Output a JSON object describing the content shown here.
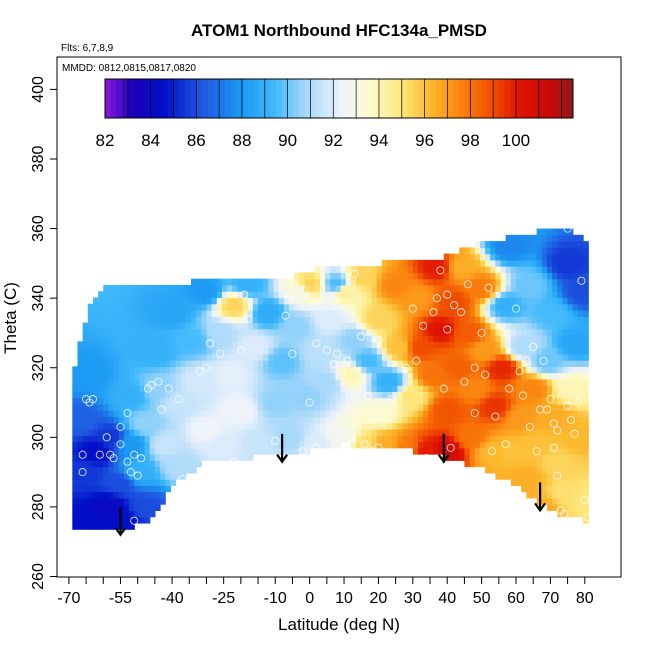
{
  "chart_data": {
    "type": "heatmap",
    "title": "ATOM1 Northbound HFC134a_PMSD",
    "flights_note": "Flts: 6,7,8,9",
    "mmdd_note": "MMDD: 0812,0815,0817,0820",
    "xlabel": "Latitude (deg N)",
    "ylabel": "Theta (C)",
    "xlim": [
      -72,
      85
    ],
    "ylim": [
      260,
      405
    ],
    "x_ticks": [
      -70,
      -55,
      -40,
      -25,
      -10,
      0,
      10,
      20,
      30,
      40,
      50,
      60,
      70,
      80
    ],
    "x_tick_labels": [
      "-70",
      "-55",
      "-40",
      "-25",
      "-10",
      "0",
      "10",
      "20",
      "30",
      "40",
      "50",
      "60",
      "70",
      "80"
    ],
    "x_minor_ticks": [
      -65,
      -60,
      -50,
      -45,
      -35,
      -30,
      -20,
      -15,
      -5,
      5,
      15,
      25,
      35,
      45,
      55,
      65,
      75
    ],
    "y_ticks": [
      260,
      280,
      300,
      320,
      340,
      360,
      380,
      400
    ],
    "y_tick_labels": [
      "260",
      "280",
      "300",
      "320",
      "340",
      "360",
      "380",
      "400"
    ],
    "colorbar": {
      "range": [
        82,
        102.5
      ],
      "ticks": [
        82,
        84,
        86,
        88,
        90,
        92,
        94,
        96,
        98,
        100
      ],
      "tick_labels": [
        "82",
        "84",
        "86",
        "88",
        "90",
        "92",
        "94",
        "96",
        "98",
        "100"
      ],
      "stops": [
        [
          82,
          "#8c1bd8"
        ],
        [
          83.2,
          "#1a00b8"
        ],
        [
          84.6,
          "#0010c8"
        ],
        [
          86.2,
          "#1f55e0"
        ],
        [
          88,
          "#1d9af3"
        ],
        [
          89.4,
          "#3fb8fb"
        ],
        [
          90.8,
          "#a8d8fa"
        ],
        [
          92.4,
          "#eef3fb"
        ],
        [
          93.6,
          "#fdfbd0"
        ],
        [
          95,
          "#fde77c"
        ],
        [
          96.2,
          "#fcb92e"
        ],
        [
          97.4,
          "#fb8a12"
        ],
        [
          98.8,
          "#f25500"
        ],
        [
          100.2,
          "#e01200"
        ],
        [
          101.6,
          "#c40a0a"
        ],
        [
          102.5,
          "#8c1a1a"
        ]
      ]
    },
    "field_points": [
      [
        -66,
        276,
        84.5
      ],
      [
        -66,
        290,
        85.5
      ],
      [
        -66,
        305,
        86.5
      ],
      [
        -64,
        318,
        88
      ],
      [
        -62,
        296,
        84.5
      ],
      [
        -58,
        280,
        84
      ],
      [
        -58,
        300,
        85.5
      ],
      [
        -55,
        287,
        86
      ],
      [
        -54,
        276,
        84.6
      ],
      [
        -52,
        298,
        88
      ],
      [
        -52,
        312,
        89
      ],
      [
        -50,
        290,
        89
      ],
      [
        -48,
        280,
        86
      ],
      [
        -48,
        304,
        90.5
      ],
      [
        -45,
        325,
        89
      ],
      [
        -44,
        314,
        90.5
      ],
      [
        -42,
        298,
        91.5
      ],
      [
        -40,
        336,
        88.5
      ],
      [
        -38,
        310,
        91.5
      ],
      [
        -38,
        292,
        91
      ],
      [
        -34,
        328,
        89.5
      ],
      [
        -32,
        316,
        91.8
      ],
      [
        -30,
        302,
        92.5
      ],
      [
        -30,
        342,
        88
      ],
      [
        -26,
        330,
        91
      ],
      [
        -26,
        298,
        92
      ],
      [
        -23,
        318,
        92.2
      ],
      [
        -22,
        338,
        95.5
      ],
      [
        -20,
        308,
        92.5
      ],
      [
        -18,
        344,
        89
      ],
      [
        -16,
        326,
        92
      ],
      [
        -14,
        298,
        91.5
      ],
      [
        -12,
        336,
        88.8
      ],
      [
        -10,
        310,
        90.5
      ],
      [
        -8,
        322,
        89.8
      ],
      [
        -6,
        300,
        90.8
      ],
      [
        -4,
        332,
        90.5
      ],
      [
        -3,
        342,
        93
      ],
      [
        -1,
        312,
        90.5
      ],
      [
        0,
        344,
        95.5
      ],
      [
        2,
        298,
        92
      ],
      [
        3,
        324,
        91.2
      ],
      [
        5,
        316,
        90.8
      ],
      [
        6,
        334,
        92
      ],
      [
        8,
        344,
        89.5
      ],
      [
        10,
        300,
        92.8
      ],
      [
        10,
        342,
        94.5
      ],
      [
        12,
        318,
        94
      ],
      [
        13,
        328,
        90.5
      ],
      [
        15,
        346,
        95.5
      ],
      [
        16,
        298,
        95.2
      ],
      [
        17,
        322,
        89.5
      ],
      [
        20,
        307,
        93.5
      ],
      [
        20,
        334,
        95.5
      ],
      [
        22,
        298,
        96.5
      ],
      [
        23,
        316,
        89
      ],
      [
        25,
        344,
        97.5
      ],
      [
        26,
        326,
        96
      ],
      [
        28,
        297,
        97.8
      ],
      [
        30,
        312,
        95
      ],
      [
        31,
        340,
        97
      ],
      [
        32,
        326,
        99
      ],
      [
        34,
        296,
        100
      ],
      [
        36,
        318,
        98
      ],
      [
        37,
        349,
        100
      ],
      [
        38,
        331,
        100.2
      ],
      [
        40,
        308,
        98.8
      ],
      [
        40,
        296,
        101
      ],
      [
        42,
        339,
        99
      ],
      [
        43,
        320,
        98.5
      ],
      [
        44,
        349,
        96.5
      ],
      [
        46,
        330,
        98.6
      ],
      [
        47,
        300,
        98
      ],
      [
        48,
        314,
        97.5
      ],
      [
        50,
        343,
        97.8
      ],
      [
        51,
        325,
        97
      ],
      [
        53,
        296,
        96.2
      ],
      [
        54,
        309,
        99.5
      ],
      [
        56,
        320,
        99.8
      ],
      [
        57,
        338,
        89
      ],
      [
        58,
        355,
        87.5
      ],
      [
        59,
        296,
        96
      ],
      [
        61,
        306,
        97
      ],
      [
        62,
        326,
        91
      ],
      [
        63,
        288,
        96.5
      ],
      [
        64,
        344,
        90
      ],
      [
        65,
        314,
        97.5
      ],
      [
        66,
        298,
        96
      ],
      [
        68,
        280,
        96.5
      ],
      [
        69,
        322,
        90
      ],
      [
        70,
        336,
        89.5
      ],
      [
        71,
        306,
        96.5
      ],
      [
        72,
        293,
        95.5
      ],
      [
        74,
        284,
        95.2
      ],
      [
        75,
        350,
        85.5
      ],
      [
        76,
        314,
        94
      ],
      [
        77,
        327,
        88.5
      ],
      [
        78,
        300,
        96.2
      ],
      [
        79,
        342,
        86
      ],
      [
        80,
        282,
        95
      ]
    ],
    "sample_points": [
      [
        -66,
        295
      ],
      [
        -66,
        290
      ],
      [
        -64,
        310
      ],
      [
        -65,
        311
      ],
      [
        -63,
        311
      ],
      [
        -61,
        295
      ],
      [
        -59,
        300
      ],
      [
        -58,
        295
      ],
      [
        -57,
        294
      ],
      [
        -55,
        298
      ],
      [
        -55,
        303
      ],
      [
        -53,
        307
      ],
      [
        -53,
        293
      ],
      [
        -52,
        290
      ],
      [
        -51,
        295
      ],
      [
        -50,
        289
      ],
      [
        -51,
        276
      ],
      [
        -49,
        294
      ],
      [
        -47,
        314
      ],
      [
        -46,
        315
      ],
      [
        -44,
        316
      ],
      [
        -43,
        308
      ],
      [
        -41,
        314
      ],
      [
        -38,
        311
      ],
      [
        -37,
        288
      ],
      [
        -32,
        319
      ],
      [
        -30,
        320
      ],
      [
        -29,
        327
      ],
      [
        -27,
        291
      ],
      [
        -26,
        324
      ],
      [
        -22,
        293
      ],
      [
        -20,
        325
      ],
      [
        -19,
        341
      ],
      [
        -18,
        334
      ],
      [
        -10,
        299
      ],
      [
        -7,
        335
      ],
      [
        -6,
        341
      ],
      [
        -5,
        324
      ],
      [
        -2,
        296
      ],
      [
        0,
        310
      ],
      [
        2,
        327
      ],
      [
        2,
        297
      ],
      [
        5,
        325
      ],
      [
        7,
        321
      ],
      [
        8,
        324
      ],
      [
        11,
        322
      ],
      [
        12,
        298
      ],
      [
        13,
        347
      ],
      [
        15,
        329
      ],
      [
        16,
        298
      ],
      [
        17,
        312
      ],
      [
        18,
        296
      ],
      [
        20,
        328
      ],
      [
        20,
        297
      ],
      [
        24,
        311
      ],
      [
        28,
        320
      ],
      [
        30,
        337
      ],
      [
        31,
        322
      ],
      [
        33,
        332
      ],
      [
        34,
        294
      ],
      [
        36,
        336
      ],
      [
        37,
        340
      ],
      [
        38,
        348
      ],
      [
        39,
        314
      ],
      [
        40,
        331
      ],
      [
        40,
        341
      ],
      [
        41,
        297
      ],
      [
        42,
        338
      ],
      [
        44,
        336
      ],
      [
        45,
        316
      ],
      [
        46,
        344
      ],
      [
        48,
        320
      ],
      [
        48,
        307
      ],
      [
        50,
        330
      ],
      [
        51,
        318
      ],
      [
        52,
        343
      ],
      [
        53,
        296
      ],
      [
        54,
        306
      ],
      [
        56,
        330
      ],
      [
        57,
        298
      ],
      [
        58,
        314
      ],
      [
        60,
        337
      ],
      [
        61,
        319
      ],
      [
        62,
        312
      ],
      [
        63,
        322
      ],
      [
        64,
        303
      ],
      [
        65,
        326
      ],
      [
        66,
        296
      ],
      [
        67,
        308
      ],
      [
        68,
        322
      ],
      [
        69,
        308
      ],
      [
        70,
        311
      ],
      [
        71,
        304
      ],
      [
        71,
        297
      ],
      [
        72,
        302
      ],
      [
        72,
        289
      ],
      [
        73,
        279
      ],
      [
        74,
        278
      ],
      [
        75,
        309
      ],
      [
        76,
        305
      ],
      [
        77,
        301
      ],
      [
        78,
        310
      ],
      [
        79,
        345
      ],
      [
        80,
        282
      ],
      [
        81,
        277
      ],
      [
        75,
        360
      ]
    ],
    "arrows": [
      [
        -55,
        280,
        272
      ],
      [
        -8,
        301,
        293
      ],
      [
        39,
        301,
        293
      ],
      [
        67,
        287,
        279
      ]
    ]
  }
}
